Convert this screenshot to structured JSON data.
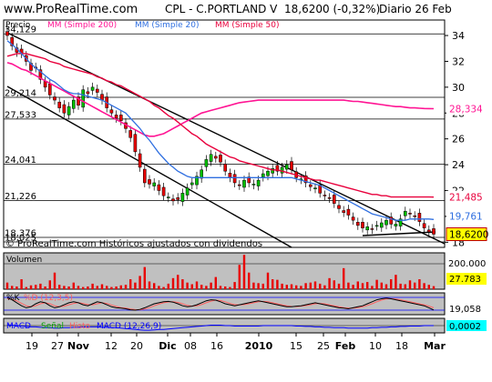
{
  "header": {
    "site": "www.ProRealTime.com",
    "title": "CPL - C.PORTLAND V",
    "price_change": "18,6200 (-0,32%)",
    "period": "Diario 26 Feb"
  },
  "watermark": "© ProRealTime.com Históricos ajustados con dividendos",
  "colors": {
    "ma200": "#ff1493",
    "ma20": "#2f6fe0",
    "ma50": "#e8003c",
    "volume": "#e80000",
    "panel_bg": "#c0c0c0",
    "up_candle": "#00c000",
    "down_candle": "#e80000"
  },
  "chart_data": [
    {
      "type": "candlestick",
      "title": "CPL - C.PORTLAND V",
      "ylabel": "Precio",
      "x_tick_labels": [
        "19",
        "27",
        "Nov",
        "12",
        "20",
        "Dic",
        "08",
        "16",
        "2010",
        "15",
        "25",
        "Feb",
        "10",
        "18",
        "Mar"
      ],
      "y_tick_labels": [
        "34",
        "32",
        "30",
        "28",
        "26",
        "24",
        "22",
        "20",
        "18"
      ],
      "ylim": [
        17.6,
        35.2
      ],
      "horizontal_levels": [
        "34,129",
        "29,214",
        "27,533",
        "24,041",
        "21,226",
        "18,376",
        "18,025"
      ],
      "horizontal_level_values": [
        34.129,
        29.214,
        27.533,
        24.041,
        21.226,
        18.376,
        18.025
      ],
      "legend": [
        "MM (Simple 200)",
        "MM (Simple 20)",
        "MM (Simple 50)"
      ],
      "last_value_labels": {
        "ma200": "28,334",
        "ma50": "21,485",
        "ma20": "19,761",
        "close": "18,6200"
      },
      "close": [
        34.0,
        33.2,
        32.7,
        32.6,
        32.0,
        31.3,
        31.5,
        30.6,
        30.0,
        29.4,
        29.0,
        28.4,
        28.0,
        28.5,
        29.0,
        28.6,
        29.8,
        29.5,
        30.0,
        29.6,
        29.0,
        28.4,
        28.0,
        27.6,
        27.4,
        26.8,
        26.1,
        25.0,
        23.8,
        22.6,
        22.5,
        22.6,
        22.0,
        21.6,
        21.5,
        21.2,
        21.3,
        21.8,
        22.2,
        22.6,
        23.1,
        23.6,
        24.4,
        24.8,
        24.5,
        24.2,
        23.5,
        23.0,
        22.6,
        22.4,
        22.8,
        22.6,
        22.5,
        22.8,
        23.3,
        23.5,
        23.7,
        23.5,
        23.8,
        24.0,
        23.6,
        23.0,
        22.9,
        22.6,
        22.3,
        22.2,
        21.8,
        21.6,
        21.4,
        21.0,
        20.6,
        20.3,
        20.1,
        19.7,
        19.3,
        19.1,
        19.2,
        19.0,
        19.3,
        19.5,
        19.7,
        19.4,
        19.4,
        19.8,
        20.4,
        20.2,
        20.0,
        19.6,
        19.1,
        18.8,
        18.62
      ],
      "ma20": [
        33.6,
        33.3,
        33.0,
        32.6,
        32.2,
        31.8,
        31.5,
        31.2,
        30.9,
        30.6,
        30.4,
        30.1,
        29.8,
        29.6,
        29.5,
        29.5,
        29.4,
        29.3,
        29.2,
        29.1,
        29.0,
        28.8,
        28.6,
        28.4,
        28.2,
        28.0,
        27.6,
        27.2,
        26.8,
        26.3,
        25.9,
        25.4,
        24.9,
        24.5,
        24.1,
        23.8,
        23.5,
        23.3,
        23.1,
        23.0,
        23.0,
        23.0,
        23.0,
        23.0,
        23.0,
        23.0,
        23.0,
        23.0,
        23.0,
        23.0,
        23.0,
        23.0,
        23.0,
        23.0,
        23.0,
        23.0,
        23.0,
        23.0,
        23.0,
        23.0,
        23.0,
        22.9,
        22.8,
        22.7,
        22.6,
        22.5,
        22.4,
        22.2,
        22.0,
        21.8,
        21.6,
        21.4,
        21.2,
        21.0,
        20.8,
        20.6,
        20.4,
        20.2,
        20.1,
        20.0,
        19.9,
        19.8,
        19.7,
        19.7,
        19.7,
        19.8,
        19.8,
        19.8,
        19.8,
        19.8,
        19.76
      ],
      "ma50": [
        32.4,
        32.5,
        32.6,
        32.6,
        32.6,
        32.5,
        32.4,
        32.3,
        32.2,
        32.0,
        31.9,
        31.8,
        31.6,
        31.5,
        31.4,
        31.3,
        31.2,
        31.1,
        31.0,
        30.8,
        30.7,
        30.5,
        30.4,
        30.2,
        30.1,
        29.9,
        29.7,
        29.5,
        29.3,
        29.1,
        28.9,
        28.6,
        28.4,
        28.1,
        27.8,
        27.6,
        27.3,
        27.0,
        26.7,
        26.4,
        26.2,
        25.9,
        25.6,
        25.4,
        25.2,
        25.0,
        24.8,
        24.6,
        24.5,
        24.3,
        24.2,
        24.1,
        24.0,
        23.9,
        23.8,
        23.7,
        23.6,
        23.6,
        23.5,
        23.4,
        23.3,
        23.2,
        23.1,
        23.0,
        22.9,
        22.8,
        22.8,
        22.7,
        22.6,
        22.5,
        22.4,
        22.3,
        22.2,
        22.1,
        22.0,
        21.9,
        21.8,
        21.7,
        21.7,
        21.6,
        21.6,
        21.5,
        21.5,
        21.5,
        21.5,
        21.5,
        21.5,
        21.5,
        21.5,
        21.5,
        21.49
      ],
      "ma200": [
        31.9,
        31.8,
        31.6,
        31.4,
        31.3,
        31.1,
        30.9,
        30.7,
        30.5,
        30.3,
        30.1,
        29.9,
        29.7,
        29.5,
        29.3,
        29.1,
        28.9,
        28.7,
        28.5,
        28.3,
        28.1,
        27.9,
        27.7,
        27.5,
        27.3,
        27.1,
        26.9,
        26.7,
        26.5,
        26.3,
        26.2,
        26.2,
        26.3,
        26.4,
        26.6,
        26.8,
        27.0,
        27.2,
        27.4,
        27.6,
        27.8,
        28.0,
        28.1,
        28.2,
        28.3,
        28.4,
        28.5,
        28.6,
        28.7,
        28.8,
        28.85,
        28.9,
        28.95,
        29.0,
        29.0,
        29.0,
        29.0,
        29.0,
        29.0,
        29.0,
        29.0,
        29.0,
        29.0,
        29.0,
        29.0,
        29.0,
        29.0,
        29.0,
        29.0,
        29.0,
        29.0,
        29.0,
        28.95,
        28.9,
        28.9,
        28.85,
        28.8,
        28.75,
        28.7,
        28.65,
        28.6,
        28.55,
        28.5,
        28.5,
        28.45,
        28.4,
        28.4,
        28.37,
        28.35,
        28.34,
        28.334
      ]
    },
    {
      "type": "bar",
      "title": "Volumen",
      "y_tick_labels": [
        "200.000"
      ],
      "last_value_label": "27.783",
      "ylim": [
        0,
        320000
      ],
      "values": [
        60000,
        30000,
        25000,
        90000,
        20000,
        35000,
        40000,
        50000,
        25000,
        80000,
        150000,
        40000,
        30000,
        25000,
        60000,
        30000,
        20000,
        25000,
        50000,
        30000,
        45000,
        30000,
        20000,
        25000,
        35000,
        40000,
        90000,
        60000,
        120000,
        200000,
        70000,
        55000,
        30000,
        20000,
        50000,
        100000,
        130000,
        90000,
        60000,
        45000,
        70000,
        40000,
        30000,
        60000,
        110000,
        30000,
        25000,
        20000,
        65000,
        220000,
        310000,
        150000,
        60000,
        55000,
        50000,
        150000,
        90000,
        85000,
        50000,
        40000,
        45000,
        35000,
        30000,
        55000,
        60000,
        70000,
        50000,
        35000,
        100000,
        80000,
        50000,
        190000,
        60000,
        40000,
        70000,
        55000,
        65000,
        30000,
        85000,
        60000,
        45000,
        90000,
        130000,
        50000,
        45000,
        80000,
        60000,
        90000,
        55000,
        40000,
        27783
      ]
    },
    {
      "type": "line",
      "title": "%K",
      "legend": [
        "%K",
        "%D (12,3,5)"
      ],
      "last_value_label": "19,058",
      "ylim": [
        0,
        100
      ],
      "k": [
        80,
        70,
        55,
        40,
        30,
        35,
        50,
        60,
        55,
        40,
        30,
        35,
        45,
        55,
        60,
        55,
        45,
        40,
        50,
        60,
        55,
        45,
        35,
        30,
        28,
        25,
        20,
        18,
        22,
        30,
        40,
        50,
        55,
        60,
        62,
        58,
        50,
        40,
        35,
        38,
        45,
        55,
        65,
        70,
        68,
        60,
        50,
        45,
        40,
        45,
        50,
        55,
        60,
        65,
        60,
        55,
        50,
        45,
        40,
        35,
        35,
        38,
        40,
        45,
        50,
        55,
        50,
        45,
        40,
        35,
        30,
        28,
        25,
        30,
        35,
        40,
        50,
        60,
        70,
        75,
        78,
        75,
        70,
        65,
        60,
        55,
        50,
        45,
        40,
        30,
        19.058
      ],
      "d": [
        75,
        72,
        65,
        52,
        40,
        35,
        40,
        50,
        55,
        50,
        40,
        35,
        38,
        45,
        52,
        56,
        52,
        46,
        45,
        50,
        55,
        52,
        44,
        37,
        31,
        28,
        24,
        21,
        20,
        24,
        31,
        40,
        48,
        55,
        59,
        60,
        57,
        50,
        42,
        38,
        40,
        46,
        55,
        63,
        68,
        66,
        60,
        52,
        46,
        44,
        46,
        50,
        55,
        60,
        62,
        60,
        55,
        50,
        45,
        40,
        37,
        36,
        38,
        41,
        45,
        50,
        52,
        50,
        45,
        40,
        35,
        31,
        28,
        28,
        31,
        35,
        42,
        50,
        60,
        68,
        74,
        76,
        74,
        70,
        65,
        60,
        55,
        50,
        45,
        38,
        30
      ]
    },
    {
      "type": "line",
      "title": "MACD",
      "legend": [
        "MACD",
        "Señal",
        "Histo",
        "MACD (12,26,9)"
      ],
      "last_value_label": "0,0002",
      "ylim": [
        -1.5,
        1.5
      ],
      "macd": [
        0.2,
        0.1,
        0.0,
        -0.1,
        -0.2,
        -0.3,
        -0.3,
        -0.4,
        -0.5,
        -0.5,
        -0.6,
        -0.6,
        -0.5,
        -0.5,
        -0.4,
        -0.4,
        -0.3,
        -0.3,
        -0.3,
        -0.3,
        -0.4,
        -0.4,
        -0.5,
        -0.5,
        -0.6,
        -0.7,
        -0.8,
        -0.9,
        -1.0,
        -1.1,
        -1.1,
        -1.0,
        -0.9,
        -0.9,
        -0.8,
        -0.7,
        -0.6,
        -0.5,
        -0.4,
        -0.3,
        -0.2,
        -0.1,
        0.0,
        0.1,
        0.1,
        0.1,
        0.0,
        0.0,
        -0.1,
        -0.1,
        -0.1,
        -0.1,
        -0.1,
        -0.1,
        0.0,
        0.0,
        0.0,
        0.0,
        0.0,
        0.0,
        0.0,
        -0.1,
        -0.1,
        -0.2,
        -0.2,
        -0.3,
        -0.3,
        -0.4,
        -0.4,
        -0.5,
        -0.5,
        -0.5,
        -0.6,
        -0.6,
        -0.6,
        -0.6,
        -0.6,
        -0.5,
        -0.5,
        -0.4,
        -0.4,
        -0.3,
        -0.3,
        -0.2,
        -0.2,
        -0.1,
        -0.1,
        -0.1,
        0.0,
        0.0,
        0.0002
      ]
    }
  ]
}
